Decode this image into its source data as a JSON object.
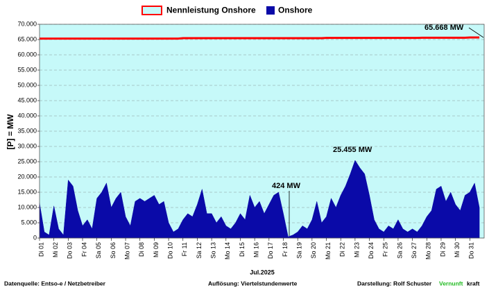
{
  "chart_data": {
    "type": "area",
    "x_label": "Jul.2025",
    "y_label": "[P] = MW",
    "categories": [
      "Di 01",
      null,
      null,
      "Mi 02",
      null,
      null,
      "Do 03",
      null,
      null,
      "Fr 04",
      null,
      null,
      "Sa 05",
      null,
      null,
      "So 06",
      null,
      null,
      "Mo 07",
      null,
      null,
      "Di 08",
      null,
      null,
      "Mi 09",
      null,
      null,
      "Do 10",
      null,
      null,
      "Fr 11",
      null,
      null,
      "Sa 12",
      null,
      null,
      "So 13",
      null,
      null,
      "Mo 14",
      null,
      null,
      "Di 15",
      null,
      null,
      "Mi 16",
      null,
      null,
      "Do 17",
      null,
      null,
      "Fr 18",
      null,
      null,
      "Sa 19",
      null,
      null,
      "So 20",
      null,
      null,
      "Mo 21",
      null,
      null,
      "Di 22",
      null,
      null,
      "Mi 23",
      null,
      null,
      "Do 24",
      null,
      null,
      "Fr 25",
      null,
      null,
      "Sa 26",
      null,
      null,
      "So 27",
      null,
      null,
      "Mo 28",
      null,
      null,
      "Di 29",
      null,
      null,
      "Mi 30",
      null,
      null,
      "Do 31",
      null,
      null
    ],
    "series": [
      {
        "name": "Nennleistung Onshore",
        "color": "#ff0000",
        "style": "line",
        "values": [
          65300,
          65300,
          65300,
          65300,
          65300,
          65300,
          65300,
          65300,
          65300,
          65300,
          65300,
          65300,
          65300,
          65300,
          65300,
          65300,
          65300,
          65300,
          65300,
          65300,
          65300,
          65300,
          65300,
          65300,
          65300,
          65300,
          65300,
          65300,
          65300,
          65300,
          65450,
          65450,
          65450,
          65450,
          65450,
          65450,
          65450,
          65450,
          65450,
          65450,
          65450,
          65450,
          65450,
          65450,
          65450,
          65450,
          65450,
          65450,
          65450,
          65450,
          65450,
          65450,
          65450,
          65450,
          65450,
          65450,
          65450,
          65450,
          65450,
          65450,
          65550,
          65550,
          65550,
          65550,
          65550,
          65550,
          65550,
          65550,
          65550,
          65550,
          65550,
          65550,
          65550,
          65550,
          65550,
          65550,
          65550,
          65550,
          65550,
          65550,
          65600,
          65600,
          65600,
          65600,
          65600,
          65600,
          65600,
          65600,
          65600,
          65600,
          65668,
          65668,
          65668
        ]
      },
      {
        "name": "Onshore",
        "color": "#0a0aa8",
        "style": "area",
        "values": [
          11500,
          2000,
          1000,
          10500,
          3000,
          1000,
          19000,
          17000,
          9000,
          4000,
          6000,
          3000,
          13000,
          15000,
          18000,
          10000,
          13000,
          15000,
          7000,
          4000,
          12000,
          13000,
          12000,
          13000,
          14000,
          11000,
          12000,
          5000,
          2000,
          3000,
          6000,
          8000,
          7000,
          11000,
          16000,
          8000,
          8000,
          5000,
          7000,
          4000,
          3000,
          5000,
          8000,
          6000,
          14000,
          10000,
          12000,
          8000,
          11000,
          14000,
          15000,
          8000,
          424,
          1000,
          2000,
          4000,
          3000,
          6000,
          12000,
          5000,
          7000,
          13000,
          10000,
          14000,
          17000,
          21000,
          25455,
          23000,
          21000,
          14000,
          6000,
          3000,
          2000,
          4000,
          3000,
          6000,
          3000,
          2000,
          3000,
          2000,
          4000,
          7000,
          9000,
          16000,
          17000,
          12000,
          15000,
          11000,
          9000,
          14000,
          15000,
          18000,
          10000
        ]
      }
    ],
    "ylim": [
      0,
      70000
    ],
    "yticks": [
      0,
      {
        "value": 5000,
        "label": "5.000"
      },
      {
        "value": 10000,
        "label": "10.000"
      },
      {
        "value": 15000,
        "label": "15.000"
      },
      {
        "value": 20000,
        "label": "20.000"
      },
      {
        "value": 25000,
        "label": "25.000"
      },
      {
        "value": 30000,
        "label": "30.000"
      },
      {
        "value": 35000,
        "label": "35.000"
      },
      {
        "value": 40000,
        "label": "40.000"
      },
      {
        "value": 45000,
        "label": "45.000"
      },
      {
        "value": 50000,
        "label": "50.000"
      },
      {
        "value": 55000,
        "label": "55.000"
      },
      {
        "value": 60000,
        "label": "60.000"
      },
      {
        "value": 65000,
        "label": "65.000"
      },
      {
        "value": 70000,
        "label": "70.000"
      }
    ],
    "grid": true,
    "plot_background": "#c6f9f9",
    "annotations": [
      "65.668 MW",
      "25.455 MW",
      "424 MW"
    ],
    "footer": {
      "source": "Datenquelle: Entso-e  / Netzbetreiber",
      "resolution": "Auflösung: Viertelstundenwerte",
      "author": "Darstellung: Rolf Schuster",
      "brand_green": "Vernunft",
      "brand_black": "kraft"
    }
  }
}
